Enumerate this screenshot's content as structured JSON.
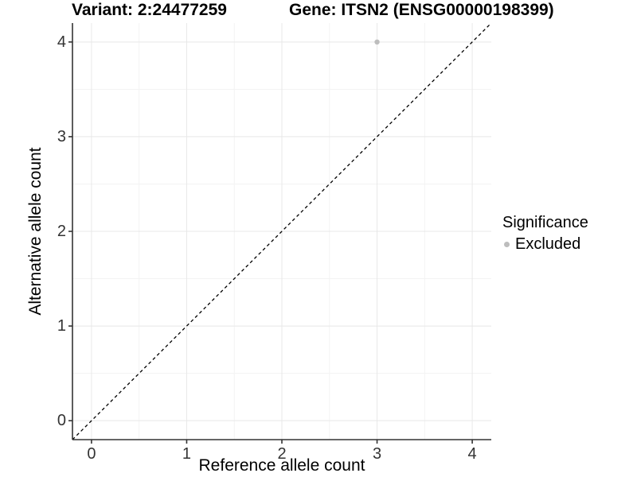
{
  "chart_data": {
    "type": "scatter",
    "titles": {
      "variant": "Variant: 2:24477259",
      "gene": "Gene: ITSN2 (ENSG00000198399)"
    },
    "xlabel": "Reference allele count",
    "ylabel": "Alternative allele count",
    "xlim": [
      -0.2,
      4.2
    ],
    "ylim": [
      -0.2,
      4.2
    ],
    "x_ticks": [
      0,
      1,
      2,
      3,
      4
    ],
    "y_ticks": [
      0,
      1,
      2,
      3,
      4
    ],
    "grid": {
      "major": true,
      "minor": true
    },
    "reference_line": {
      "type": "identity",
      "equation": "y = x",
      "style": "dashed",
      "color": "#000000"
    },
    "series": [
      {
        "name": "Excluded",
        "color": "#bdbdbd",
        "marker": "circle",
        "marker_radius": 3.2,
        "points": [
          [
            3,
            4
          ]
        ]
      }
    ],
    "legend": {
      "title": "Significance",
      "position": "right",
      "entries": [
        {
          "label": "Excluded",
          "color": "#bdbdbd",
          "marker": "circle"
        }
      ]
    },
    "colors": {
      "background": "#ffffff",
      "grid_major": "#e8e8e8",
      "grid_minor": "#f3f3f3",
      "axis_line": "#333333",
      "tick_label": "#333333"
    }
  }
}
